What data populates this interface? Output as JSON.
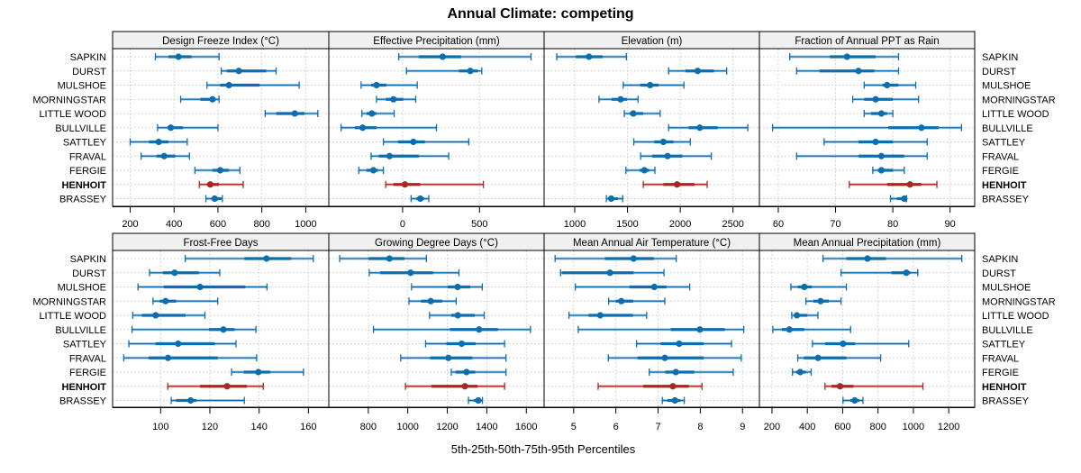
{
  "chart_data": {
    "type": "dot-whisker",
    "title": "Annual Climate: competing",
    "xlabel": "5th-25th-50th-75th-95th Percentiles",
    "grid": true,
    "layout": "2 rows x 4 panels",
    "percentiles": [
      "5th",
      "25th",
      "50th",
      "75th",
      "95th"
    ],
    "highlight": "HENHOIT",
    "colors": {
      "default": "#0b6eb0",
      "highlight": "#b22222",
      "strip_fill": "#f0f0f0",
      "grid": "#c8c8c8"
    },
    "categories": [
      "SAPKIN",
      "DURST",
      "MULSHOE",
      "MORNINGSTAR",
      "LITTLE WOOD",
      "BULLVILLE",
      "SATTLEY",
      "FRAVAL",
      "FERGIE",
      "HENHOIT",
      "BRASSEY"
    ],
    "panels": [
      {
        "title": "Design Freeze Index (°C)",
        "xlim": [
          120,
          1105
        ],
        "ticks": [
          200,
          400,
          600,
          800,
          1000
        ],
        "values": [
          [
            315,
            375,
            420,
            480,
            605
          ],
          [
            615,
            640,
            695,
            820,
            865
          ],
          [
            550,
            610,
            650,
            790,
            970
          ],
          [
            430,
            520,
            575,
            590,
            605
          ],
          [
            815,
            865,
            950,
            995,
            1055
          ],
          [
            325,
            370,
            385,
            440,
            600
          ],
          [
            200,
            285,
            330,
            375,
            460
          ],
          [
            250,
            320,
            355,
            405,
            470
          ],
          [
            495,
            575,
            610,
            650,
            700
          ],
          [
            515,
            550,
            565,
            605,
            715
          ],
          [
            545,
            570,
            585,
            615,
            620
          ]
        ]
      },
      {
        "title": "Effective Precipitation (mm)",
        "xlim": [
          -480,
          920
        ],
        "ticks": [
          0,
          500
        ],
        "values": [
          [
            -25,
            105,
            260,
            380,
            835
          ],
          [
            25,
            365,
            440,
            490,
            515
          ],
          [
            -270,
            -205,
            -170,
            -105,
            95
          ],
          [
            -170,
            -110,
            -60,
            5,
            85
          ],
          [
            -265,
            -235,
            -200,
            -170,
            -55
          ],
          [
            -400,
            -310,
            -260,
            -170,
            220
          ],
          [
            -125,
            -30,
            70,
            145,
            430
          ],
          [
            -205,
            -155,
            -85,
            105,
            300
          ],
          [
            -285,
            -235,
            -190,
            -160,
            -125
          ],
          [
            -110,
            -60,
            15,
            115,
            525
          ],
          [
            55,
            90,
            115,
            140,
            170
          ]
        ]
      },
      {
        "title": "Elevation (m)",
        "xlim": [
          710,
          2750
        ],
        "ticks": [
          1000,
          1500,
          2000,
          2500
        ],
        "values": [
          [
            830,
            1010,
            1135,
            1265,
            1490
          ],
          [
            1890,
            2050,
            2165,
            2320,
            2440
          ],
          [
            1460,
            1620,
            1715,
            1795,
            2035
          ],
          [
            1230,
            1350,
            1435,
            1495,
            1600
          ],
          [
            1470,
            1520,
            1555,
            1650,
            1810
          ],
          [
            1890,
            2080,
            2185,
            2355,
            2640
          ],
          [
            1560,
            1755,
            1840,
            1935,
            2095
          ],
          [
            1625,
            1735,
            1880,
            2020,
            2295
          ],
          [
            1485,
            1615,
            1660,
            1705,
            1760
          ],
          [
            1650,
            1840,
            1970,
            2135,
            2255
          ],
          [
            1300,
            1325,
            1345,
            1410,
            1455
          ]
        ]
      },
      {
        "title": "Fraction of Annual PPT as Rain",
        "xlim": [
          56.7,
          94.3
        ],
        "ticks": [
          60,
          70,
          80,
          90
        ],
        "values": [
          [
            62,
            69,
            72,
            77,
            81
          ],
          [
            63.2,
            67.2,
            74,
            76.8,
            81
          ],
          [
            75,
            78.2,
            79,
            81,
            84
          ],
          [
            73,
            75,
            77,
            80,
            84.5
          ],
          [
            75,
            76.2,
            78,
            79,
            80
          ],
          [
            59,
            79.2,
            85,
            88,
            92
          ],
          [
            68,
            74,
            77,
            80,
            86
          ],
          [
            63.2,
            74,
            78,
            82,
            86
          ],
          [
            76.5,
            77.4,
            78,
            80,
            82
          ],
          [
            72.4,
            79,
            83,
            85,
            87.7
          ],
          [
            79.6,
            80.7,
            82,
            82.3,
            82.4
          ]
        ]
      },
      {
        "title": "Frost-Free Days",
        "xlim": [
          80.5,
          168.3
        ],
        "ticks": [
          100,
          120,
          140,
          160
        ],
        "values": [
          [
            110,
            134,
            143,
            153,
            162
          ],
          [
            95.5,
            100.9,
            105.7,
            115.5,
            124
          ],
          [
            90.8,
            101.3,
            116,
            134.4,
            143.2
          ],
          [
            96.9,
            99.6,
            102,
            106.3,
            123.2
          ],
          [
            88.7,
            92.4,
            98,
            110.1,
            118
          ],
          [
            88.4,
            119.6,
            125.5,
            130,
            138.7
          ],
          [
            87.1,
            97.9,
            107.1,
            122,
            130.6
          ],
          [
            85,
            95.1,
            103,
            123.2,
            139
          ],
          [
            128.8,
            133.8,
            139.7,
            144.5,
            158
          ],
          [
            102.9,
            116,
            127,
            135,
            141.7
          ],
          [
            104.3,
            106.3,
            112.2,
            114.5,
            134
          ]
        ]
      },
      {
        "title": "Growing Degree Days (°C)",
        "xlim": [
          600,
          1690
        ],
        "ticks": [
          800,
          1000,
          1200,
          1400,
          1600
        ],
        "values": [
          [
            655,
            800,
            907,
            983,
            1094
          ],
          [
            805,
            861,
            1014,
            1128,
            1259
          ],
          [
            1019,
            1201,
            1252,
            1316,
            1377
          ],
          [
            1006,
            1067,
            1116,
            1174,
            1245
          ],
          [
            1110,
            1220,
            1253,
            1339,
            1387
          ],
          [
            826,
            1213,
            1361,
            1456,
            1621
          ],
          [
            1090,
            1195,
            1273,
            1343,
            1490
          ],
          [
            964,
            1113,
            1205,
            1327,
            1497
          ],
          [
            1220,
            1242,
            1297,
            1341,
            1497
          ],
          [
            988,
            1120,
            1289,
            1353,
            1490
          ],
          [
            1307,
            1334,
            1357,
            1367,
            1378
          ]
        ]
      },
      {
        "title": "Mean Annual Air Temperature (°C)",
        "xlim": [
          4.3,
          9.4
        ],
        "ticks": [
          5,
          6,
          7,
          8,
          9
        ],
        "values": [
          [
            4.56,
            5.74,
            6.42,
            6.9,
            7.43
          ],
          [
            4.69,
            4.73,
            5.86,
            6.42,
            7.14
          ],
          [
            5.04,
            6.32,
            6.91,
            7.2,
            7.75
          ],
          [
            5.83,
            6.0,
            6.13,
            6.41,
            7.16
          ],
          [
            4.89,
            5.35,
            5.63,
            6.41,
            6.73
          ],
          [
            5.11,
            7.3,
            7.99,
            8.58,
            9.03
          ],
          [
            6.49,
            7.06,
            7.5,
            8.08,
            8.74
          ],
          [
            5.82,
            6.51,
            7.16,
            8.08,
            8.97
          ],
          [
            6.79,
            7.17,
            7.42,
            7.86,
            8.78
          ],
          [
            5.58,
            6.65,
            7.35,
            7.73,
            8.04
          ],
          [
            7.1,
            7.22,
            7.4,
            7.53,
            7.62
          ]
        ]
      },
      {
        "title": "Mean Annual Precipitation (mm)",
        "xlim": [
          129,
          1347
        ],
        "ticks": [
          200,
          400,
          600,
          800,
          1000,
          1200
        ],
        "values": [
          [
            489,
            621,
            740,
            845,
            1274
          ],
          [
            591,
            876,
            960,
            983,
            1025
          ],
          [
            307,
            346,
            383,
            426,
            621
          ],
          [
            392,
            434,
            475,
            522,
            591
          ],
          [
            312,
            326,
            341,
            400,
            460
          ],
          [
            205,
            256,
            299,
            383,
            645
          ],
          [
            429,
            500,
            602,
            670,
            974
          ],
          [
            346,
            380,
            461,
            621,
            815
          ],
          [
            316,
            337,
            360,
            392,
            422
          ],
          [
            500,
            537,
            585,
            661,
            1054
          ],
          [
            602,
            643,
            668,
            694,
            715
          ]
        ]
      }
    ]
  }
}
